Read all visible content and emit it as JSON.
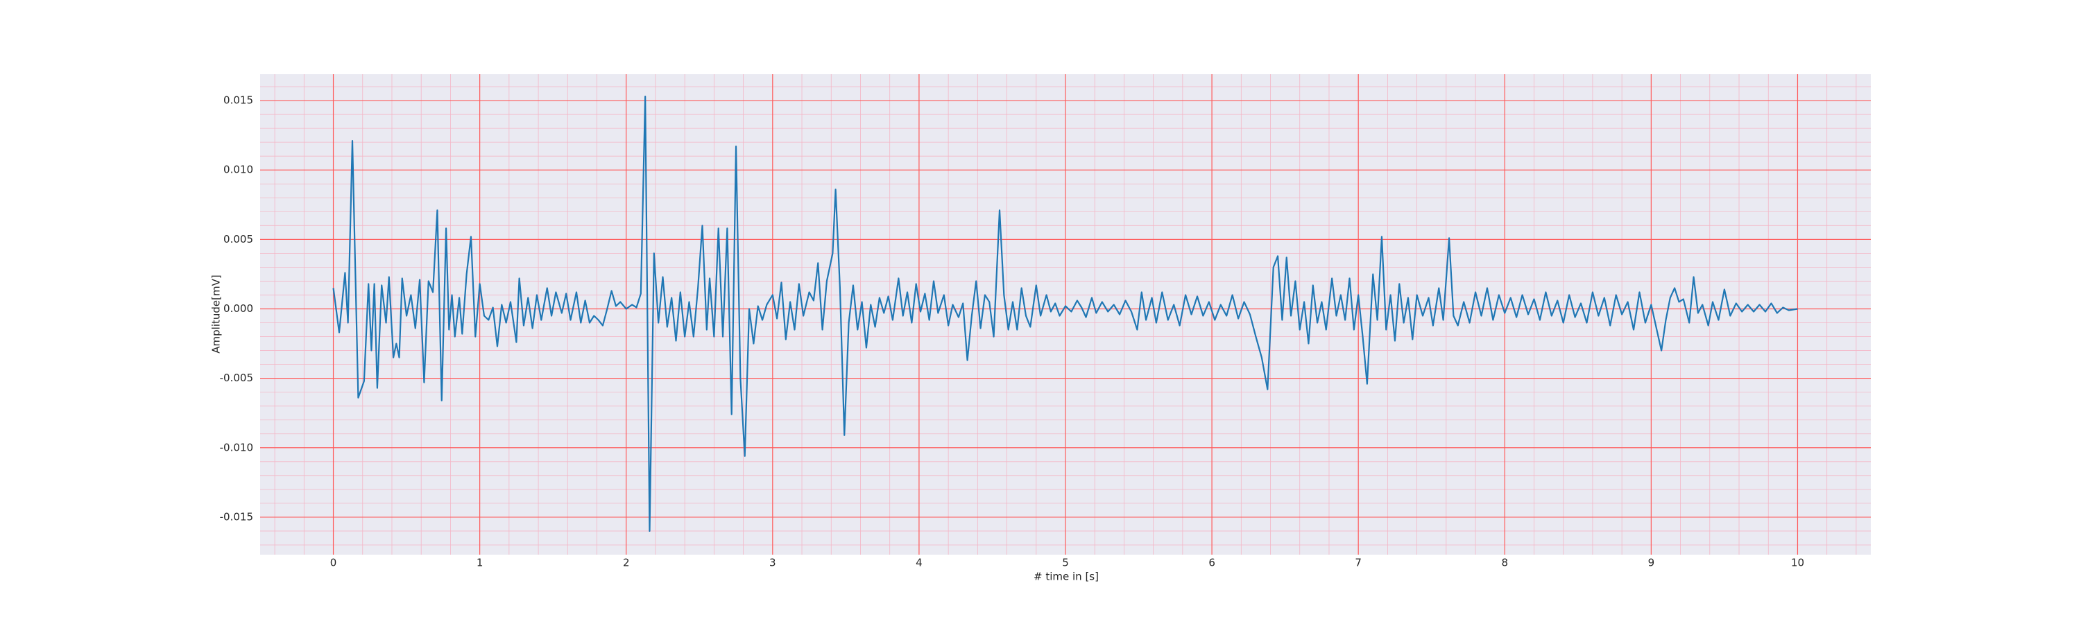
{
  "chart_data": {
    "type": "line",
    "xlabel": "# time in [s]",
    "ylabel": "Amplitude[mV]",
    "xlim": [
      -0.5,
      10.5
    ],
    "ylim": [
      -0.0177,
      0.0169
    ],
    "xticks": [
      0,
      1,
      2,
      3,
      4,
      5,
      6,
      7,
      8,
      9,
      10
    ],
    "yticks": [
      -0.015,
      {
        "value": -0.01,
        "label": "-0.010"
      },
      -0.005,
      {
        "value": 0,
        "label": "0.000"
      },
      0.005,
      {
        "value": 0.01,
        "label": "0.010"
      },
      0.015
    ],
    "grid": true,
    "minor_grid": true,
    "x": [
      0.0,
      0.04,
      0.08,
      0.1,
      0.13,
      0.17,
      0.21,
      0.24,
      0.26,
      0.28,
      0.3,
      0.33,
      0.36,
      0.38,
      0.41,
      0.43,
      0.45,
      0.47,
      0.5,
      0.53,
      0.56,
      0.59,
      0.62,
      0.65,
      0.68,
      0.71,
      0.74,
      0.77,
      0.79,
      0.81,
      0.83,
      0.86,
      0.88,
      0.91,
      0.94,
      0.97,
      1.0,
      1.03,
      1.06,
      1.09,
      1.12,
      1.15,
      1.18,
      1.21,
      1.25,
      1.27,
      1.3,
      1.33,
      1.36,
      1.39,
      1.42,
      1.46,
      1.49,
      1.52,
      1.56,
      1.59,
      1.62,
      1.66,
      1.69,
      1.72,
      1.75,
      1.78,
      1.81,
      1.84,
      1.87,
      1.9,
      1.93,
      1.96,
      2.0,
      2.04,
      2.07,
      2.1,
      2.13,
      2.16,
      2.19,
      2.22,
      2.25,
      2.28,
      2.31,
      2.34,
      2.37,
      2.4,
      2.43,
      2.46,
      2.49,
      2.52,
      2.55,
      2.57,
      2.6,
      2.63,
      2.66,
      2.69,
      2.72,
      2.75,
      2.78,
      2.81,
      2.84,
      2.87,
      2.9,
      2.93,
      2.96,
      3.0,
      3.03,
      3.06,
      3.09,
      3.12,
      3.15,
      3.18,
      3.21,
      3.25,
      3.28,
      3.31,
      3.34,
      3.37,
      3.41,
      3.43,
      3.46,
      3.49,
      3.52,
      3.55,
      3.58,
      3.61,
      3.64,
      3.67,
      3.7,
      3.73,
      3.76,
      3.79,
      3.82,
      3.86,
      3.89,
      3.92,
      3.95,
      3.98,
      4.01,
      4.04,
      4.07,
      4.1,
      4.13,
      4.17,
      4.2,
      4.23,
      4.27,
      4.3,
      4.33,
      4.36,
      4.39,
      4.42,
      4.45,
      4.48,
      4.51,
      4.55,
      4.58,
      4.61,
      4.64,
      4.67,
      4.7,
      4.73,
      4.76,
      4.8,
      4.83,
      4.87,
      4.9,
      4.93,
      4.96,
      5.0,
      5.04,
      5.08,
      5.11,
      5.14,
      5.18,
      5.21,
      5.25,
      5.29,
      5.33,
      5.37,
      5.41,
      5.45,
      5.49,
      5.52,
      5.55,
      5.59,
      5.62,
      5.66,
      5.7,
      5.74,
      5.78,
      5.82,
      5.86,
      5.9,
      5.94,
      5.98,
      6.02,
      6.06,
      6.1,
      6.14,
      6.18,
      6.22,
      6.26,
      6.3,
      6.34,
      6.38,
      6.42,
      6.45,
      6.48,
      6.51,
      6.54,
      6.57,
      6.6,
      6.63,
      6.66,
      6.69,
      6.72,
      6.75,
      6.78,
      6.82,
      6.85,
      6.88,
      6.91,
      6.94,
      6.97,
      7.0,
      7.03,
      7.06,
      7.1,
      7.13,
      7.16,
      7.19,
      7.22,
      7.25,
      7.28,
      7.31,
      7.34,
      7.37,
      7.4,
      7.44,
      7.48,
      7.51,
      7.55,
      7.58,
      7.62,
      7.65,
      7.68,
      7.72,
      7.76,
      7.8,
      7.84,
      7.88,
      7.92,
      7.96,
      8.0,
      8.04,
      8.08,
      8.12,
      8.16,
      8.2,
      8.24,
      8.28,
      8.32,
      8.36,
      8.4,
      8.44,
      8.48,
      8.52,
      8.56,
      8.6,
      8.64,
      8.68,
      8.72,
      8.76,
      8.8,
      8.84,
      8.88,
      8.92,
      8.96,
      9.0,
      9.04,
      9.07,
      9.1,
      9.13,
      9.16,
      9.19,
      9.22,
      9.26,
      9.29,
      9.32,
      9.35,
      9.39,
      9.42,
      9.46,
      9.5,
      9.54,
      9.58,
      9.62,
      9.66,
      9.7,
      9.74,
      9.78,
      9.82,
      9.86,
      9.9,
      9.94,
      10.0
    ],
    "series": [
      {
        "color": "#1f77b4",
        "values": [
          0.0015,
          -0.0017,
          0.0026,
          -0.001,
          0.0121,
          -0.0064,
          -0.0052,
          0.0018,
          -0.003,
          0.0018,
          -0.0057,
          0.0017,
          -0.001,
          0.0023,
          -0.0035,
          -0.0025,
          -0.0035,
          0.0022,
          -0.0005,
          0.001,
          -0.0014,
          0.0021,
          -0.0053,
          0.002,
          0.0012,
          0.0071,
          -0.0066,
          0.0058,
          -0.0015,
          0.001,
          -0.002,
          0.0008,
          -0.0018,
          0.0025,
          0.0052,
          -0.002,
          0.0018,
          -0.0005,
          -0.0008,
          0.0001,
          -0.0027,
          0.0003,
          -0.001,
          0.0005,
          -0.0024,
          0.0022,
          -0.0012,
          0.0008,
          -0.0014,
          0.001,
          -0.0008,
          0.0015,
          -0.0005,
          0.0012,
          -0.0003,
          0.0011,
          -0.0008,
          0.0012,
          -0.001,
          0.0006,
          -0.001,
          -0.0005,
          -0.0008,
          -0.0012,
          0.0,
          0.0013,
          0.0002,
          0.0005,
          0.0,
          0.0003,
          0.0001,
          0.0011,
          0.0153,
          -0.016,
          0.004,
          -0.001,
          0.0023,
          -0.0013,
          0.0008,
          -0.0023,
          0.0012,
          -0.002,
          0.0005,
          -0.002,
          0.0015,
          0.006,
          -0.0015,
          0.0022,
          -0.002,
          0.0058,
          -0.002,
          0.0058,
          -0.0076,
          0.0117,
          -0.005,
          -0.0106,
          0.0,
          -0.0025,
          0.0002,
          -0.0008,
          0.0003,
          0.001,
          -0.0007,
          0.0019,
          -0.0022,
          0.0005,
          -0.0015,
          0.0018,
          -0.0005,
          0.0012,
          0.0006,
          0.0033,
          -0.0015,
          0.002,
          0.004,
          0.0086,
          0.0015,
          -0.0091,
          -0.001,
          0.0017,
          -0.0015,
          0.0005,
          -0.0028,
          0.0003,
          -0.0013,
          0.0008,
          -0.0003,
          0.0009,
          -0.0008,
          0.0022,
          -0.0005,
          0.0012,
          -0.001,
          0.0018,
          -0.0002,
          0.0011,
          -0.0008,
          0.002,
          -0.0003,
          0.001,
          -0.0012,
          0.0003,
          -0.0006,
          0.0004,
          -0.0037,
          -0.0005,
          0.002,
          -0.0014,
          0.001,
          0.0005,
          -0.002,
          0.0071,
          0.001,
          -0.0015,
          0.0005,
          -0.0015,
          0.0015,
          -0.0005,
          -0.0013,
          0.0017,
          -0.0005,
          0.001,
          -0.0002,
          0.0004,
          -0.0005,
          0.0002,
          -0.0002,
          0.0006,
          0.0001,
          -0.0006,
          0.0008,
          -0.0003,
          0.0005,
          -0.0002,
          0.0003,
          -0.0004,
          0.0006,
          -0.0002,
          -0.0015,
          0.0012,
          -0.0008,
          0.0008,
          -0.001,
          0.0012,
          -0.0008,
          0.0003,
          -0.0012,
          0.001,
          -0.0004,
          0.0009,
          -0.0005,
          0.0005,
          -0.0008,
          0.0003,
          -0.0005,
          0.001,
          -0.0007,
          0.0005,
          -0.0004,
          -0.002,
          -0.0035,
          -0.0058,
          0.003,
          0.0038,
          -0.0008,
          0.0037,
          -0.0005,
          0.002,
          -0.0015,
          0.0005,
          -0.0025,
          0.0017,
          -0.001,
          0.0005,
          -0.0015,
          0.0022,
          -0.0005,
          0.001,
          -0.0008,
          0.0022,
          -0.0015,
          0.001,
          -0.002,
          -0.0054,
          0.0025,
          -0.0008,
          0.0052,
          -0.0015,
          0.001,
          -0.0023,
          0.0018,
          -0.001,
          0.0008,
          -0.0022,
          0.001,
          -0.0005,
          0.0008,
          -0.0012,
          0.0015,
          -0.0008,
          0.0051,
          -0.0005,
          -0.0012,
          0.0005,
          -0.001,
          0.0012,
          -0.0005,
          0.0015,
          -0.0008,
          0.001,
          -0.0003,
          0.0008,
          -0.0006,
          0.001,
          -0.0004,
          0.0007,
          -0.0008,
          0.0012,
          -0.0005,
          0.0006,
          -0.001,
          0.001,
          -0.0006,
          0.0004,
          -0.001,
          0.0012,
          -0.0005,
          0.0008,
          -0.0012,
          0.001,
          -0.0004,
          0.0005,
          -0.0015,
          0.0012,
          -0.001,
          0.0003,
          -0.0016,
          -0.003,
          -0.0008,
          0.0008,
          0.0015,
          0.0005,
          0.0007,
          -0.001,
          0.0023,
          -0.0003,
          0.0003,
          -0.0012,
          0.0005,
          -0.0008,
          0.0014,
          -0.0005,
          0.0004,
          -0.0002,
          0.0003,
          -0.0002,
          0.0003,
          -0.0002,
          0.0004,
          -0.0003,
          0.0001,
          -0.0001,
          0.0
        ]
      }
    ]
  }
}
